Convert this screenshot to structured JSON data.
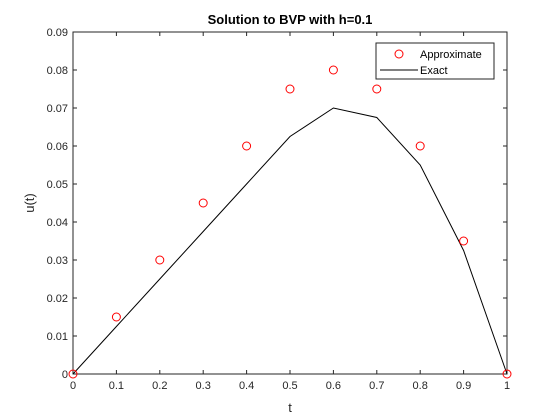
{
  "chart_data": {
    "type": "line",
    "title": "Solution to BVP with h=0.1",
    "xlabel": "t",
    "ylabel": "u(t)",
    "xlim": [
      0,
      1
    ],
    "ylim": [
      0,
      0.09
    ],
    "grid": false,
    "legend_position": "top-right",
    "x_ticks": [
      "0",
      "0.1",
      "0.2",
      "0.3",
      "0.4",
      "0.5",
      "0.6",
      "0.7",
      "0.8",
      "0.9",
      "1"
    ],
    "y_ticks": [
      "0",
      "0.01",
      "0.02",
      "0.03",
      "0.04",
      "0.05",
      "0.06",
      "0.07",
      "0.08",
      "0.09"
    ],
    "x_tick_values": [
      0,
      0.1,
      0.2,
      0.3,
      0.4,
      0.5,
      0.6,
      0.7,
      0.8,
      0.9,
      1
    ],
    "y_tick_values": [
      0,
      0.01,
      0.02,
      0.03,
      0.04,
      0.05,
      0.06,
      0.07,
      0.08,
      0.09
    ],
    "series": [
      {
        "name": "Approximate",
        "style": "markers",
        "marker": "circle",
        "color": "#ff0000",
        "x": [
          0,
          0.1,
          0.2,
          0.3,
          0.4,
          0.5,
          0.6,
          0.7,
          0.8,
          0.9,
          1
        ],
        "y": [
          0,
          0.015,
          0.03,
          0.045,
          0.06,
          0.075,
          0.08,
          0.075,
          0.06,
          0.035,
          0
        ]
      },
      {
        "name": "Exact",
        "style": "line",
        "color": "#000000",
        "x": [
          0,
          0.1,
          0.2,
          0.3,
          0.4,
          0.5,
          0.6,
          0.7,
          0.8,
          0.9,
          1
        ],
        "y": [
          0,
          0.0125,
          0.025,
          0.0375,
          0.05,
          0.0625,
          0.07,
          0.0675,
          0.055,
          0.0325,
          0
        ]
      }
    ]
  }
}
